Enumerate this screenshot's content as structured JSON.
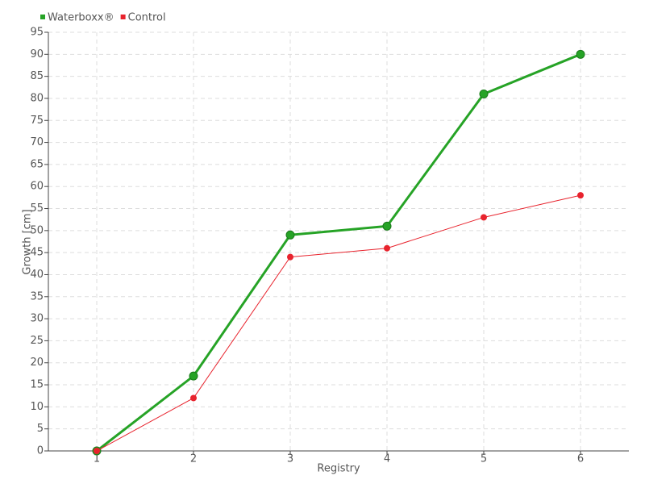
{
  "chart_data": {
    "type": "line",
    "x_label": "Registry",
    "y_label": "Growth [cm]",
    "categories": [
      "1",
      "2",
      "3",
      "4",
      "5",
      "6"
    ],
    "series": [
      {
        "name": "Waterboxx®",
        "color": "#26a326",
        "values": [
          0,
          17,
          49,
          51,
          81,
          90
        ]
      },
      {
        "name": "Control",
        "color": "#e8232d",
        "values": [
          0,
          12,
          44,
          46,
          53,
          58
        ]
      }
    ],
    "ylim": [
      0,
      95
    ],
    "yticks": [
      0,
      5,
      10,
      15,
      20,
      25,
      30,
      35,
      40,
      45,
      50,
      55,
      60,
      65,
      70,
      75,
      80,
      85,
      90,
      95
    ],
    "grid": true,
    "legend": "top-left"
  }
}
